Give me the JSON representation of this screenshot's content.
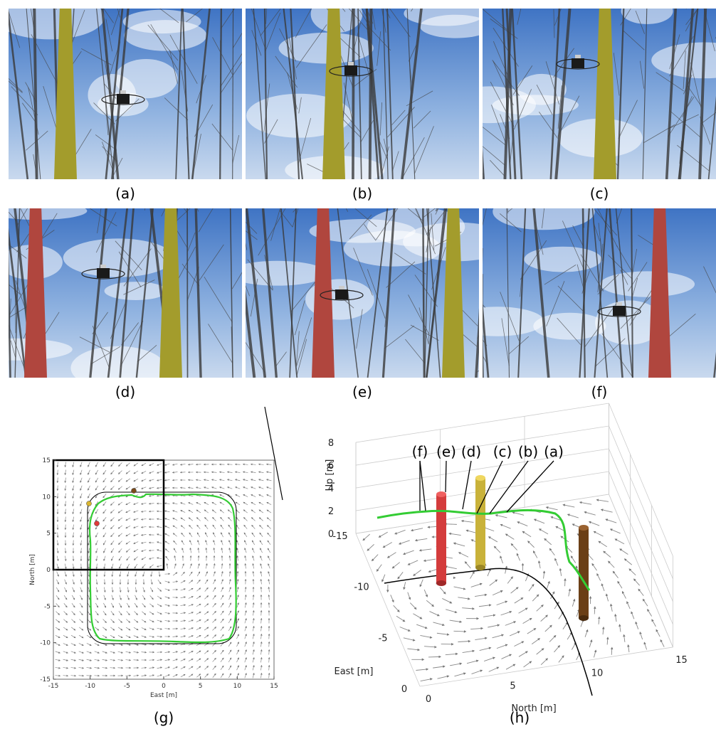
{
  "photos": [
    {
      "caption": "(a)"
    },
    {
      "caption": "(b)"
    },
    {
      "caption": "(c)"
    },
    {
      "caption": "(d)"
    },
    {
      "caption": "(e)"
    },
    {
      "caption": "(f)"
    }
  ],
  "plot_g": {
    "caption": "(g)",
    "xlabel": "East [m]",
    "ylabel": "North [m]",
    "xlim": [
      -15,
      15
    ],
    "ylim": [
      -15,
      15
    ],
    "xticks": [
      -15,
      -10,
      -5,
      0,
      5,
      10,
      15
    ],
    "yticks": [
      -15,
      -10,
      -5,
      0,
      5,
      10,
      15
    ]
  },
  "plot_h": {
    "caption": "(h)",
    "north_label": "North [m]",
    "east_label": "East [m]",
    "up_label": "Up [m]",
    "north_ticks": [
      0,
      5,
      10,
      15
    ],
    "east_ticks": [
      0,
      -5,
      -10,
      -15
    ],
    "up_ticks": [
      0,
      2,
      4,
      6,
      8
    ],
    "annotations": [
      "(f)",
      "(e)",
      "(d)",
      "(c)",
      "(b)",
      "(a)"
    ]
  }
}
